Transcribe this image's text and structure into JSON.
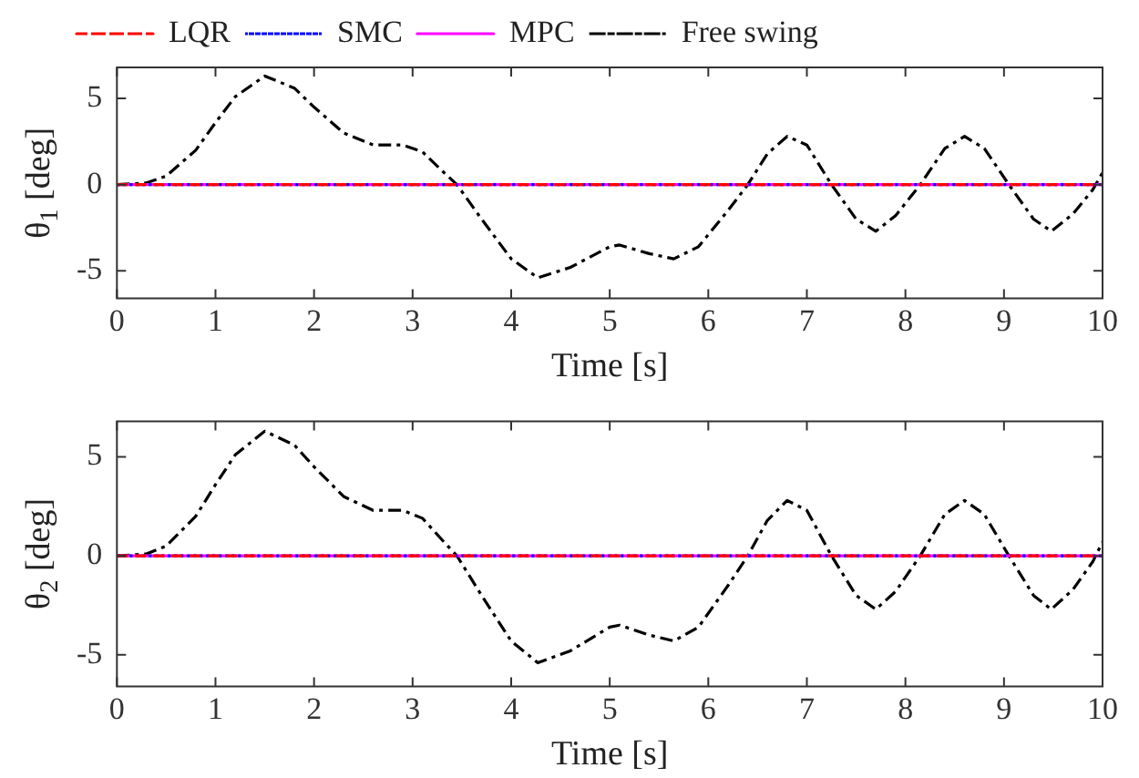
{
  "chart_data": [
    {
      "type": "line",
      "xlabel": "Time [s]",
      "ylabel": "θ$_{1}$ [deg]",
      "xlim": [
        0,
        10
      ],
      "xticks": [
        0,
        1,
        2,
        3,
        4,
        5,
        6,
        7,
        8,
        9,
        10
      ],
      "ylim": [
        -6.6,
        6.8
      ],
      "yticks": [
        -5,
        0,
        5
      ],
      "grid": false,
      "legend": "top",
      "marker": "none",
      "series": [
        {
          "name": "LQR",
          "color": "#ff0000",
          "line_style": "dashed",
          "x": [
            0,
            10
          ],
          "values": [
            0,
            0
          ]
        },
        {
          "name": "SMC",
          "color": "#0000ff",
          "line_style": "dotted",
          "x": [
            0,
            10
          ],
          "values": [
            0,
            0
          ]
        },
        {
          "name": "MPC",
          "color": "#ff00ff",
          "line_style": "solid",
          "x": [
            0,
            10
          ],
          "values": [
            0,
            0
          ]
        },
        {
          "name": "Free swing",
          "color": "#000000",
          "line_style": "dashdot",
          "x": [
            0,
            0.3,
            0.5,
            0.8,
            1.0,
            1.2,
            1.5,
            1.8,
            2.0,
            2.3,
            2.6,
            2.9,
            3.1,
            3.3,
            3.45,
            3.7,
            4.0,
            4.27,
            4.6,
            5.0,
            5.1,
            5.4,
            5.65,
            5.9,
            6.2,
            6.4,
            6.6,
            6.8,
            7.0,
            7.25,
            7.5,
            7.7,
            7.9,
            8.15,
            8.4,
            8.6,
            8.8,
            9.05,
            9.3,
            9.48,
            9.7,
            9.9,
            10
          ],
          "values": [
            0,
            0.1,
            0.5,
            2.0,
            3.6,
            5.1,
            6.3,
            5.6,
            4.5,
            3.0,
            2.3,
            2.3,
            1.9,
            0.8,
            0,
            -2.0,
            -4.3,
            -5.4,
            -4.8,
            -3.6,
            -3.5,
            -4.0,
            -4.3,
            -3.6,
            -1.5,
            0,
            1.8,
            2.8,
            2.3,
            0,
            -2.0,
            -2.7,
            -1.8,
            0,
            2.1,
            2.8,
            2.1,
            0,
            -2.0,
            -2.7,
            -1.7,
            -0.3,
            0.7
          ]
        }
      ]
    },
    {
      "type": "line",
      "xlabel": "Time [s]",
      "ylabel": "θ$_{2}$ [deg]",
      "xlim": [
        0,
        10
      ],
      "xticks": [
        0,
        1,
        2,
        3,
        4,
        5,
        6,
        7,
        8,
        9,
        10
      ],
      "ylim": [
        -6.6,
        6.8
      ],
      "yticks": [
        -5,
        0,
        5
      ],
      "grid": false,
      "marker": "none",
      "series": [
        {
          "color": "#ff0000",
          "line_style": "dashed",
          "x": [
            0,
            10
          ],
          "values": [
            0,
            0
          ]
        },
        {
          "color": "#0000ff",
          "line_style": "dotted",
          "x": [
            0,
            10
          ],
          "values": [
            0,
            0
          ]
        },
        {
          "color": "#ff00ff",
          "line_style": "solid",
          "x": [
            0,
            10
          ],
          "values": [
            0,
            0
          ]
        },
        {
          "color": "#000000",
          "line_style": "dashdot",
          "x": [
            0,
            0.3,
            0.5,
            0.8,
            1.0,
            1.2,
            1.5,
            1.8,
            2.0,
            2.3,
            2.6,
            2.9,
            3.1,
            3.3,
            3.45,
            3.7,
            4.0,
            4.27,
            4.6,
            5.0,
            5.1,
            5.4,
            5.65,
            5.9,
            6.2,
            6.4,
            6.6,
            6.8,
            7.0,
            7.25,
            7.5,
            7.7,
            7.9,
            8.15,
            8.4,
            8.6,
            8.8,
            9.05,
            9.3,
            9.48,
            9.7,
            9.9,
            10
          ],
          "values": [
            0,
            0.1,
            0.5,
            2.0,
            3.6,
            5.1,
            6.3,
            5.6,
            4.5,
            3.0,
            2.3,
            2.3,
            1.9,
            0.8,
            0,
            -2.0,
            -4.3,
            -5.4,
            -4.8,
            -3.6,
            -3.5,
            -4.0,
            -4.3,
            -3.6,
            -1.5,
            0,
            1.8,
            2.8,
            2.3,
            0,
            -2.0,
            -2.7,
            -1.8,
            0,
            2.1,
            2.8,
            2.1,
            0,
            -2.0,
            -2.7,
            -1.7,
            -0.3,
            0.7
          ]
        }
      ]
    }
  ]
}
